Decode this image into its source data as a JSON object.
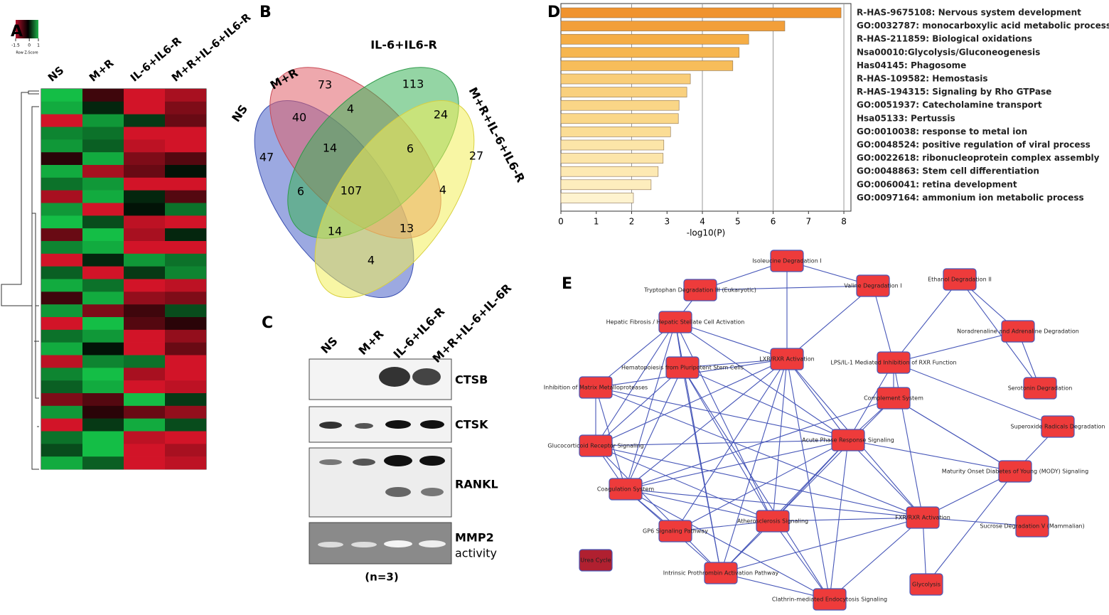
{
  "panel_labels": [
    "A",
    "B",
    "C",
    "D",
    "E"
  ],
  "heatmap": {
    "columns": [
      "NS",
      "M+R",
      "IL-6+IL6-R",
      "M+R+IL-6+IL6-R"
    ],
    "scale": {
      "ticks": [
        -1.5,
        0,
        1
      ],
      "label": "Row Z-Score"
    },
    "values": [
      [
        1,
        -0.3,
        -1,
        -0.8
      ],
      [
        0.9,
        0.2,
        -1.2,
        -0.6
      ],
      [
        -1.2,
        0.8,
        0.3,
        -0.5
      ],
      [
        0.7,
        0.6,
        -1,
        -1.4
      ],
      [
        0.8,
        0.5,
        -0.9,
        -1.1
      ],
      [
        -0.2,
        0.9,
        -0.6,
        -0.4
      ],
      [
        0.9,
        -0.8,
        -0.5,
        0.1
      ],
      [
        0.6,
        0.8,
        -1.1,
        -1
      ],
      [
        -0.8,
        0.9,
        0.2,
        -0.4
      ],
      [
        0.8,
        -1.2,
        0.1,
        0.6
      ],
      [
        1,
        0.4,
        -0.9,
        -1.3
      ],
      [
        -0.5,
        1,
        -0.8,
        0.2
      ],
      [
        0.7,
        0.9,
        -1,
        -1.2
      ],
      [
        -1.3,
        0.2,
        0.8,
        0.6
      ],
      [
        0.5,
        -1,
        0.3,
        0.7
      ],
      [
        0.9,
        0.6,
        -1.2,
        -0.9
      ],
      [
        -0.3,
        0.9,
        -0.7,
        -0.6
      ],
      [
        0.8,
        -0.6,
        -0.3,
        0.4
      ],
      [
        -1,
        1,
        -0.4,
        -0.2
      ],
      [
        0.6,
        0.8,
        -1.3,
        -0.7
      ],
      [
        0.9,
        0.1,
        -1,
        -0.5
      ],
      [
        -0.9,
        0.7,
        0.6,
        -1
      ],
      [
        0.7,
        1,
        -0.8,
        -1.1
      ],
      [
        0.5,
        0.9,
        -1.1,
        -0.9
      ],
      [
        -0.6,
        -0.4,
        1,
        0.3
      ],
      [
        0.8,
        -0.2,
        -0.5,
        -0.7
      ],
      [
        -1.2,
        0.3,
        0.9,
        0.4
      ],
      [
        0.6,
        1,
        -0.9,
        -1.2
      ],
      [
        0.4,
        1,
        -1,
        -0.8
      ],
      [
        0.9,
        0.5,
        -1.1,
        -0.9
      ]
    ]
  },
  "venn": {
    "sets": [
      "NS",
      "M+R",
      "IL-6+IL6-R",
      "M+R+IL-6+IL6-R"
    ],
    "counts": [
      47,
      73,
      113,
      27,
      40,
      4,
      24,
      14,
      6,
      6,
      107,
      4,
      14,
      13,
      4
    ]
  },
  "blot": {
    "lanes": [
      "NS",
      "M+R",
      "IL-6+IL6-R",
      "M+R+IL-6+IL-6R"
    ],
    "proteins": [
      "CTSB",
      "CTSK",
      "RANKL",
      "MMP2"
    ],
    "activity": "activity",
    "note": "(n=3)"
  },
  "chart_data": {
    "type": "bar",
    "orientation": "horizontal",
    "categories": [
      "R-HAS-9675108: Nervous system development",
      "GO:0032787: monocarboxylic acid metabolic process",
      "R-HAS-211859: Biological oxidations",
      "Nsa00010:Glycolysis/Gluconeogenesis",
      "Has04145: Phagosome",
      "R-HAS-109582: Hemostasis",
      "R-HAS-194315: Signaling by Rho GTPase",
      "GO:0051937: Catecholamine transport",
      "Hsa05133: Pertussis",
      "GO:0010038: response to metal ion",
      "GO:0048524: positive regulation of viral process",
      "GO:0022618: ribonucleoprotein  complex assembly",
      "GO:0048863: Stem cell differentiation",
      "GO:0060041: retina development",
      "GO:0097164: ammonium ion metabolic process"
    ],
    "values": [
      7.92,
      6.33,
      5.31,
      5.04,
      4.86,
      3.66,
      3.56,
      3.34,
      3.32,
      3.1,
      2.91,
      2.89,
      2.75,
      2.55,
      2.05
    ],
    "colors": [
      "#f0932e",
      "#f29f3a",
      "#f5ad45",
      "#f6b650",
      "#f7bd5a",
      "#f9cd78",
      "#f9d07e",
      "#fad687",
      "#fad789",
      "#fbdd95",
      "#fce5a8",
      "#fce5aa",
      "#fde9b3",
      "#fdedbd",
      "#fef3cf"
    ],
    "xlim": [
      0,
      8.2
    ],
    "xticks": [
      0,
      1,
      2,
      3,
      4,
      5,
      6,
      7,
      8
    ],
    "xlabel": "-log10(P)",
    "grid": true
  },
  "network": {
    "nodes": [
      "Isoleucine Degradation I",
      "Tryptophan Degradation III (Eukaryotic)",
      "Valine Degradation I",
      "Ethanol Degradation II",
      "Hepatic Fibrosis / Hepatic Stellate Cell Activation",
      "Noradrenaline and Adrenaline Degradation",
      "LXR/RXR Activation",
      "LPS/IL-1 Mediated Inhibition of RXR Function",
      "Hematopoiesis from Pluripotent Stem Cells",
      "Inhibition of Matrix Metalloproteases",
      "Serotonin Degradation",
      "Complement System",
      "Superoxide Radicals Degradation",
      "Glucocorticoid Receptor Signaling",
      "Acute Phase Response Signaling",
      "Maturity Onset Diabetes of Young (MODY) Signaling",
      "Coagulation System",
      "Atherosclerosis Signaling",
      "FXR/RXR Activation",
      "Sucrose Degradation V (Mammalian)",
      "GP6 Signaling Pathway",
      "Urea Cycle",
      "Intrinsic Prothrombin Activation Pathway",
      "Glycolysis",
      "Clathrin-mediated Endocytosis Signaling"
    ],
    "edges": [
      [
        0,
        1
      ],
      [
        0,
        2
      ],
      [
        0,
        6
      ],
      [
        1,
        2
      ],
      [
        1,
        4
      ],
      [
        2,
        6
      ],
      [
        2,
        7
      ],
      [
        3,
        5
      ],
      [
        3,
        10
      ],
      [
        3,
        7
      ],
      [
        5,
        10
      ],
      [
        5,
        7
      ],
      [
        4,
        6
      ],
      [
        4,
        8
      ],
      [
        4,
        9
      ],
      [
        4,
        13
      ],
      [
        4,
        16
      ],
      [
        4,
        14
      ],
      [
        4,
        17
      ],
      [
        4,
        22
      ],
      [
        6,
        8
      ],
      [
        6,
        9
      ],
      [
        6,
        13
      ],
      [
        6,
        14
      ],
      [
        6,
        16
      ],
      [
        6,
        17
      ],
      [
        6,
        18
      ],
      [
        6,
        22
      ],
      [
        6,
        24
      ],
      [
        6,
        20
      ],
      [
        7,
        11
      ],
      [
        7,
        14
      ],
      [
        7,
        12
      ],
      [
        7,
        18
      ],
      [
        8,
        13
      ],
      [
        8,
        16
      ],
      [
        8,
        17
      ],
      [
        8,
        22
      ],
      [
        8,
        24
      ],
      [
        8,
        14
      ],
      [
        9,
        13
      ],
      [
        9,
        16
      ],
      [
        9,
        14
      ],
      [
        9,
        18
      ],
      [
        11,
        14
      ],
      [
        11,
        17
      ],
      [
        11,
        16
      ],
      [
        11,
        15
      ],
      [
        13,
        14
      ],
      [
        13,
        16
      ],
      [
        13,
        17
      ],
      [
        13,
        22
      ],
      [
        13,
        18
      ],
      [
        14,
        16
      ],
      [
        14,
        17
      ],
      [
        14,
        15
      ],
      [
        14,
        18
      ],
      [
        14,
        20
      ],
      [
        14,
        24
      ],
      [
        14,
        22
      ],
      [
        16,
        17
      ],
      [
        16,
        22
      ],
      [
        16,
        20
      ],
      [
        16,
        18
      ],
      [
        16,
        24
      ],
      [
        17,
        18
      ],
      [
        17,
        22
      ],
      [
        17,
        24
      ],
      [
        18,
        15
      ],
      [
        18,
        19
      ],
      [
        18,
        23
      ],
      [
        18,
        24
      ],
      [
        15,
        12
      ],
      [
        15,
        23
      ],
      [
        15,
        11
      ],
      [
        17,
        20
      ],
      [
        22,
        24
      ],
      [
        18,
        22
      ]
    ]
  }
}
